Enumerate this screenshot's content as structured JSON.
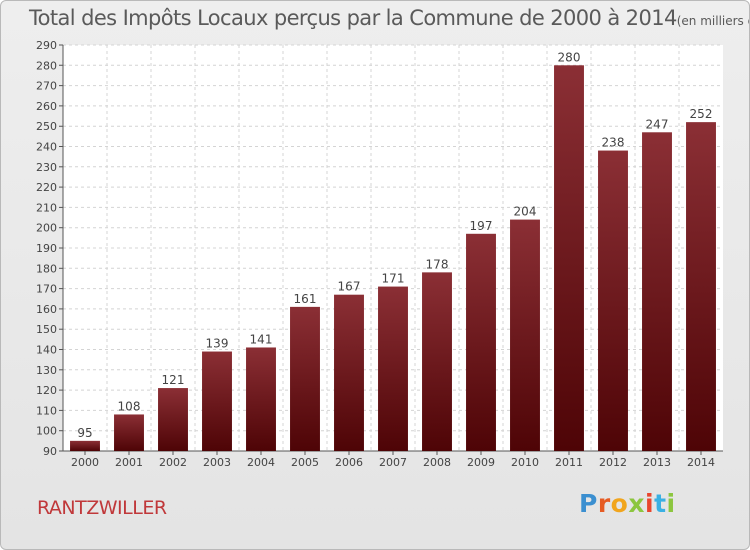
{
  "chart_data": {
    "type": "bar",
    "title": "Total des Impôts Locaux perçus par la Commune de 2000 à 2014",
    "unit_label": "(en milliers d'€)",
    "categories": [
      "2000",
      "2001",
      "2002",
      "2003",
      "2004",
      "2005",
      "2006",
      "2007",
      "2008",
      "2009",
      "2010",
      "2011",
      "2012",
      "2013",
      "2014"
    ],
    "values": [
      95,
      108,
      121,
      139,
      141,
      161,
      167,
      171,
      178,
      197,
      204,
      280,
      238,
      247,
      252
    ],
    "ylim": [
      90,
      290
    ],
    "ytick_step": 10,
    "xlabel": "",
    "ylabel": "",
    "grid": true,
    "bar_color": "#7a1f24"
  },
  "commune": "RANTZWILLER",
  "logo": {
    "text": "Proxiti"
  }
}
